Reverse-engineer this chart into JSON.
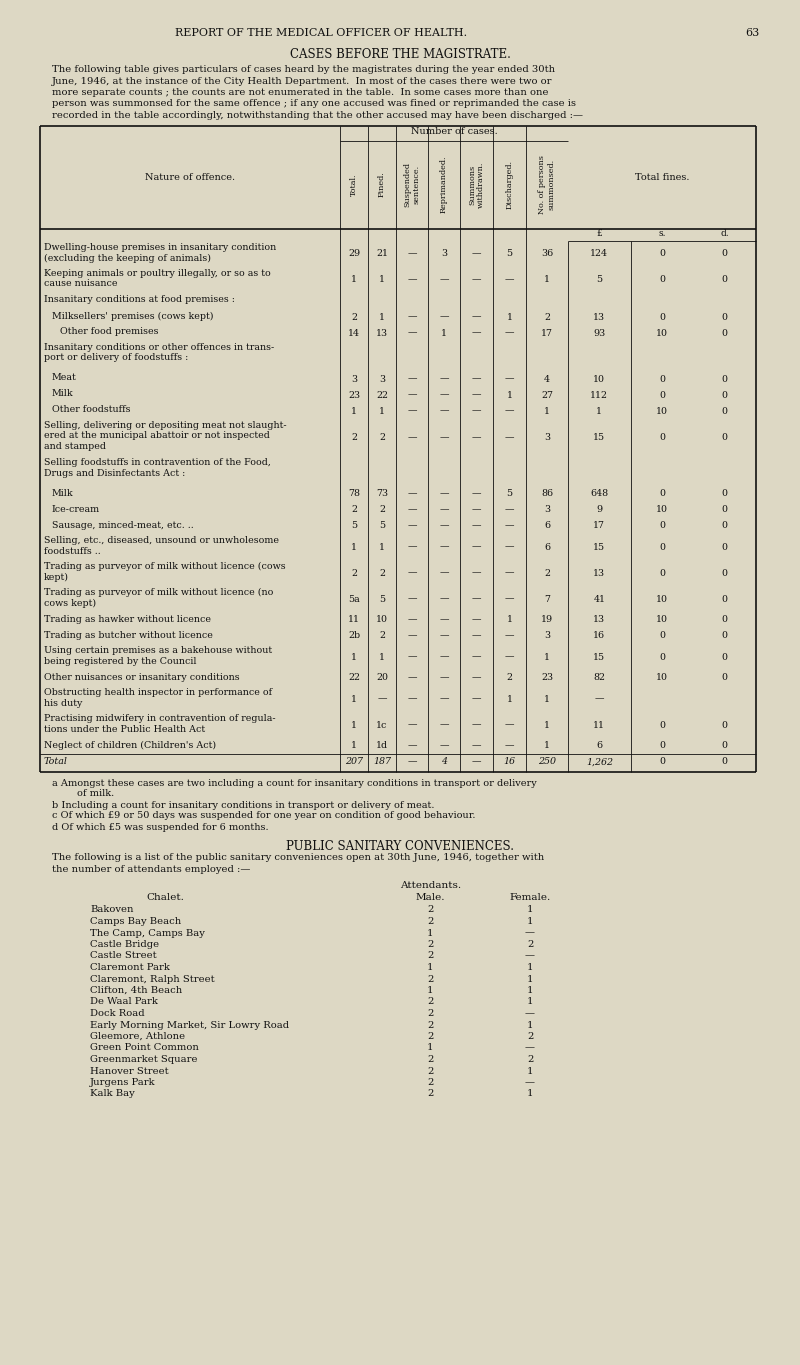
{
  "bg_color": "#ddd8c4",
  "page_header": "REPORT OF THE MEDICAL OFFICER OF HEALTH.",
  "page_number": "63",
  "section_title": "CASES BEFORE THE MAGISTRATE.",
  "intro_text": [
    "The following table gives particulars of cases heard by the magistrates during the year ended 30th",
    "June, 1946, at the instance of the City Health Department.  In most of the cases there were two or",
    "more separate counts ; the counts are not enumerated in the table.  In some cases more than one",
    "person was summonsed for the same offence ; if any one accused was fined or reprimanded the case is",
    "recorded in the table accordingly, notwithstanding that the other accused may have been discharged :—"
  ],
  "rows": [
    {
      "offence": [
        "Dwelling-house premises in insanitary condition",
        "(excluding the keeping of animals)"
      ],
      "total": "29",
      "fined": "21",
      "suspended": "—",
      "reprimanded": "3",
      "withdrawn": "—",
      "discharged": "5",
      "persons": "36",
      "fines_l": "124",
      "fines_s": "0",
      "fines_d": "0",
      "header_row": false,
      "total_row": false
    },
    {
      "offence": [
        "Keeping animals or poultry illegally, or so as to",
        "cause nuisance"
      ],
      "total": "1",
      "fined": "1",
      "suspended": "—",
      "reprimanded": "—",
      "withdrawn": "—",
      "discharged": "—",
      "persons": "1",
      "fines_l": "5",
      "fines_s": "0",
      "fines_d": "0",
      "header_row": false,
      "total_row": false
    },
    {
      "offence": [
        "Insanitary conditions at food premises :"
      ],
      "total": "",
      "fined": "",
      "suspended": "",
      "reprimanded": "",
      "withdrawn": "",
      "discharged": "",
      "persons": "",
      "fines_l": "",
      "fines_s": "",
      "fines_d": "",
      "header_row": true,
      "total_row": false
    },
    {
      "offence": [
        "Milksellers' premises (cows kept)"
      ],
      "total": "2",
      "fined": "1",
      "suspended": "—",
      "reprimanded": "—",
      "withdrawn": "—",
      "discharged": "1",
      "persons": "2",
      "fines_l": "13",
      "fines_s": "0",
      "fines_d": "0",
      "header_row": false,
      "total_row": false,
      "indent": true
    },
    {
      "offence": [
        "Other food premises"
      ],
      "total": "14",
      "fined": "13",
      "suspended": "—",
      "reprimanded": "1",
      "withdrawn": "—",
      "discharged": "—",
      "persons": "17",
      "fines_l": "93",
      "fines_s": "10",
      "fines_d": "0",
      "header_row": false,
      "total_row": false,
      "indent2": true
    },
    {
      "offence": [
        "Insanitary conditions or other offences in trans-",
        "port or delivery of foodstuffs :"
      ],
      "total": "",
      "fined": "",
      "suspended": "",
      "reprimanded": "",
      "withdrawn": "",
      "discharged": "",
      "persons": "",
      "fines_l": "",
      "fines_s": "",
      "fines_d": "",
      "header_row": true,
      "total_row": false
    },
    {
      "offence": [
        "Meat"
      ],
      "total": "3",
      "fined": "3",
      "suspended": "—",
      "reprimanded": "—",
      "withdrawn": "—",
      "discharged": "—",
      "persons": "4",
      "fines_l": "10",
      "fines_s": "0",
      "fines_d": "0",
      "header_row": false,
      "total_row": false,
      "indent": true
    },
    {
      "offence": [
        "Milk"
      ],
      "total": "23",
      "fined": "22",
      "suspended": "—",
      "reprimanded": "—",
      "withdrawn": "—",
      "discharged": "1",
      "persons": "27",
      "fines_l": "112",
      "fines_s": "0",
      "fines_d": "0",
      "header_row": false,
      "total_row": false,
      "indent": true
    },
    {
      "offence": [
        "Other foodstuffs"
      ],
      "total": "1",
      "fined": "1",
      "suspended": "—",
      "reprimanded": "—",
      "withdrawn": "—",
      "discharged": "—",
      "persons": "1",
      "fines_l": "1",
      "fines_s": "10",
      "fines_d": "0",
      "header_row": false,
      "total_row": false,
      "indent": true
    },
    {
      "offence": [
        "Selling, delivering or depositing meat not slaught-",
        "ered at the municipal abattoir or not inspected",
        "and stamped"
      ],
      "total": "2",
      "fined": "2",
      "suspended": "—",
      "reprimanded": "—",
      "withdrawn": "—",
      "discharged": "—",
      "persons": "3",
      "fines_l": "15",
      "fines_s": "0",
      "fines_d": "0",
      "header_row": false,
      "total_row": false
    },
    {
      "offence": [
        "Selling foodstuffs in contravention of the Food,",
        "Drugs and Disinfectants Act :"
      ],
      "total": "",
      "fined": "",
      "suspended": "",
      "reprimanded": "",
      "withdrawn": "",
      "discharged": "",
      "persons": "",
      "fines_l": "",
      "fines_s": "",
      "fines_d": "",
      "header_row": true,
      "total_row": false
    },
    {
      "offence": [
        "Milk"
      ],
      "total": "78",
      "fined": "73",
      "suspended": "—",
      "reprimanded": "—",
      "withdrawn": "—",
      "discharged": "5",
      "persons": "86",
      "fines_l": "648",
      "fines_s": "0",
      "fines_d": "0",
      "header_row": false,
      "total_row": false,
      "indent": true
    },
    {
      "offence": [
        "Ice-cream"
      ],
      "total": "2",
      "fined": "2",
      "suspended": "—",
      "reprimanded": "—",
      "withdrawn": "—",
      "discharged": "—",
      "persons": "3",
      "fines_l": "9",
      "fines_s": "10",
      "fines_d": "0",
      "header_row": false,
      "total_row": false,
      "indent": true
    },
    {
      "offence": [
        "Sausage, minced-meat, etc. .."
      ],
      "total": "5",
      "fined": "5",
      "suspended": "—",
      "reprimanded": "—",
      "withdrawn": "—",
      "discharged": "—",
      "persons": "6",
      "fines_l": "17",
      "fines_s": "0",
      "fines_d": "0",
      "header_row": false,
      "total_row": false,
      "indent": true
    },
    {
      "offence": [
        "Selling, etc., diseased, unsound or unwholesome",
        "foodstuffs .."
      ],
      "total": "1",
      "fined": "1",
      "suspended": "—",
      "reprimanded": "—",
      "withdrawn": "—",
      "discharged": "—",
      "persons": "6",
      "fines_l": "15",
      "fines_s": "0",
      "fines_d": "0",
      "header_row": false,
      "total_row": false
    },
    {
      "offence": [
        "Trading as purveyor of milk without licence (cows",
        "kept)"
      ],
      "total": "2",
      "fined": "2",
      "suspended": "—",
      "reprimanded": "—",
      "withdrawn": "—",
      "discharged": "—",
      "persons": "2",
      "fines_l": "13",
      "fines_s": "0",
      "fines_d": "0",
      "header_row": false,
      "total_row": false
    },
    {
      "offence": [
        "Trading as purveyor of milk without licence (no",
        "cows kept)"
      ],
      "total": "5a",
      "fined": "5",
      "suspended": "—",
      "reprimanded": "—",
      "withdrawn": "—",
      "discharged": "—",
      "persons": "7",
      "fines_l": "41",
      "fines_s": "10",
      "fines_d": "0",
      "header_row": false,
      "total_row": false
    },
    {
      "offence": [
        "Trading as hawker without licence"
      ],
      "total": "11",
      "fined": "10",
      "suspended": "—",
      "reprimanded": "—",
      "withdrawn": "—",
      "discharged": "1",
      "persons": "19",
      "fines_l": "13",
      "fines_s": "10",
      "fines_d": "0",
      "header_row": false,
      "total_row": false
    },
    {
      "offence": [
        "Trading as butcher without licence"
      ],
      "total": "2b",
      "fined": "2",
      "suspended": "—",
      "reprimanded": "—",
      "withdrawn": "—",
      "discharged": "—",
      "persons": "3",
      "fines_l": "16",
      "fines_s": "0",
      "fines_d": "0",
      "header_row": false,
      "total_row": false
    },
    {
      "offence": [
        "Using certain premises as a bakehouse without",
        "being registered by the Council"
      ],
      "total": "1",
      "fined": "1",
      "suspended": "—",
      "reprimanded": "—",
      "withdrawn": "—",
      "discharged": "—",
      "persons": "1",
      "fines_l": "15",
      "fines_s": "0",
      "fines_d": "0",
      "header_row": false,
      "total_row": false
    },
    {
      "offence": [
        "Other nuisances or insanitary conditions"
      ],
      "total": "22",
      "fined": "20",
      "suspended": "—",
      "reprimanded": "—",
      "withdrawn": "—",
      "discharged": "2",
      "persons": "23",
      "fines_l": "82",
      "fines_s": "10",
      "fines_d": "0",
      "header_row": false,
      "total_row": false
    },
    {
      "offence": [
        "Obstructing health inspector in performance of",
        "his duty"
      ],
      "total": "1",
      "fined": "—",
      "suspended": "—",
      "reprimanded": "—",
      "withdrawn": "—",
      "discharged": "1",
      "persons": "1",
      "fines_l": "—",
      "fines_s": "",
      "fines_d": "",
      "header_row": false,
      "total_row": false
    },
    {
      "offence": [
        "Practising midwifery in contravention of regula-",
        "tions under the Public Health Act"
      ],
      "total": "1",
      "fined": "1c",
      "suspended": "—",
      "reprimanded": "—",
      "withdrawn": "—",
      "discharged": "—",
      "persons": "1",
      "fines_l": "11",
      "fines_s": "0",
      "fines_d": "0",
      "header_row": false,
      "total_row": false
    },
    {
      "offence": [
        "Neglect of children (Children's Act)"
      ],
      "total": "1",
      "fined": "1d",
      "suspended": "—",
      "reprimanded": "—",
      "withdrawn": "—",
      "discharged": "—",
      "persons": "1",
      "fines_l": "6",
      "fines_s": "0",
      "fines_d": "0",
      "header_row": false,
      "total_row": false
    },
    {
      "offence": [
        "Total"
      ],
      "total": "207",
      "fined": "187",
      "suspended": "—",
      "reprimanded": "4",
      "withdrawn": "—",
      "discharged": "16",
      "persons": "250",
      "fines_l": "1,262",
      "fines_s": "0",
      "fines_d": "0",
      "header_row": false,
      "total_row": true
    }
  ],
  "footnotes": [
    [
      "a",
      " Amongst these cases are two including a count for insanitary conditions in transport or delivery"
    ],
    [
      "",
      "        of milk."
    ],
    [
      "b",
      " Including a count for insanitary conditions in transport or delivery of meat."
    ],
    [
      "c",
      " Of which £9 or 50 days was suspended for one year on condition of good behaviour."
    ],
    [
      "d",
      " Of which £5 was suspended for 6 months."
    ]
  ],
  "section2_title": "PUBLIC SANITARY CONVENIENCES.",
  "section2_intro": [
    "The following is a list of the public sanitary conveniences open at 30th June, 1946, together with",
    "the number of attendants employed :—"
  ],
  "sanitary_rows": [
    {
      "name": "Bakoven",
      "male": "2",
      "female": "1"
    },
    {
      "name": "Camps Bay Beach",
      "male": "2",
      "female": "1"
    },
    {
      "name": "The Camp, Camps Bay",
      "male": "1",
      "female": "—"
    },
    {
      "name": "Castle Bridge",
      "male": "2",
      "female": "2"
    },
    {
      "name": "Castle Street",
      "male": "2",
      "female": "—"
    },
    {
      "name": "Claremont Park",
      "male": "1",
      "female": "1"
    },
    {
      "name": "Claremont, Ralph Street",
      "male": "2",
      "female": "1"
    },
    {
      "name": "Clifton, 4th Beach",
      "male": "1",
      "female": "1"
    },
    {
      "name": "De Waal Park",
      "male": "2",
      "female": "1"
    },
    {
      "name": "Dock Road",
      "male": "2",
      "female": "—"
    },
    {
      "name": "Early Morning Market, Sir Lowry Road",
      "male": "2",
      "female": "1"
    },
    {
      "name": "Gleemore, Athlone",
      "male": "2",
      "female": "2"
    },
    {
      "name": "Green Point Common",
      "male": "1",
      "female": "—"
    },
    {
      "name": "Greenmarket Square",
      "male": "2",
      "female": "2"
    },
    {
      "name": "Hanover Street",
      "male": "2",
      "female": "1"
    },
    {
      "name": "Jurgens Park",
      "male": "2",
      "female": "—"
    },
    {
      "name": "Kalk Bay",
      "male": "2",
      "female": "1"
    }
  ]
}
